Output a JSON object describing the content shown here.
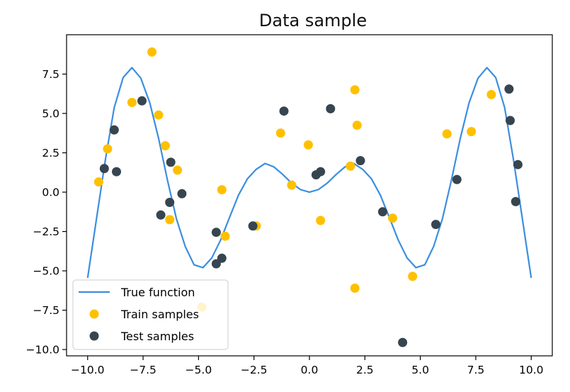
{
  "chart_data": {
    "type": "scatter",
    "title": "Data sample",
    "xlabel": "",
    "ylabel": "",
    "xlim": [
      -10.95,
      10.95
    ],
    "ylim": [
      -10.4,
      10.0
    ],
    "x_ticks": [
      -10.0,
      -7.5,
      -5.0,
      -2.5,
      0.0,
      2.5,
      5.0,
      7.5,
      10.0
    ],
    "x_tick_labels": [
      "−10.0",
      "−7.5",
      "−5.0",
      "−2.5",
      "0.0",
      "2.5",
      "5.0",
      "7.5",
      "10.0"
    ],
    "y_ticks": [
      7.5,
      5.0,
      2.5,
      0.0,
      -2.5,
      -5.0,
      -7.5,
      -10.0
    ],
    "y_tick_labels": [
      "7.5",
      "5.0",
      "2.5",
      "0.0",
      "−2.5",
      "−5.0",
      "−7.5",
      "−10.0"
    ],
    "grid": false,
    "legend_position": "lower-left",
    "colors": {
      "true_function": "#3b8ee0",
      "train": "#ffc000",
      "test": "#36454f",
      "axes": "#000000"
    },
    "legend": {
      "true_function": "True function",
      "train": "Train samples",
      "test": "Test samples"
    },
    "series": [
      {
        "name": "True function",
        "kind": "line",
        "x": [
          -10.0,
          -9.6,
          -9.2,
          -8.8,
          -8.4,
          -8.0,
          -7.6,
          -7.2,
          -6.8,
          -6.4,
          -6.0,
          -5.6,
          -5.2,
          -4.8,
          -4.4,
          -4.0,
          -3.6,
          -3.2,
          -2.8,
          -2.4,
          -2.0,
          -1.6,
          -1.2,
          -0.8,
          -0.4,
          0.0,
          0.4,
          0.8,
          1.2,
          1.6,
          2.0,
          2.4,
          2.8,
          3.2,
          3.6,
          4.0,
          4.4,
          4.8,
          5.2,
          5.6,
          6.0,
          6.4,
          6.8,
          7.2,
          7.6,
          8.0,
          8.4,
          8.8,
          9.2,
          9.6,
          10.0
        ],
        "y": [
          -5.44,
          -1.68,
          2.05,
          5.37,
          7.28,
          7.91,
          7.24,
          5.68,
          3.41,
          0.76,
          -1.68,
          -3.45,
          -4.62,
          -4.8,
          -4.17,
          -3.03,
          -1.6,
          -0.19,
          0.84,
          1.45,
          1.82,
          1.6,
          1.12,
          0.57,
          0.16,
          0.0,
          0.16,
          0.57,
          1.12,
          1.6,
          1.82,
          1.45,
          0.84,
          -0.19,
          -1.6,
          -3.03,
          -4.17,
          -4.8,
          -4.62,
          -3.45,
          -1.68,
          0.76,
          3.41,
          5.68,
          7.24,
          7.91,
          7.28,
          5.37,
          2.05,
          -1.68,
          -5.44
        ]
      },
      {
        "name": "Train samples",
        "kind": "scatter",
        "points": [
          [
            -9.5,
            0.65
          ],
          [
            -9.1,
            2.75
          ],
          [
            -8.0,
            5.7
          ],
          [
            -7.1,
            8.9
          ],
          [
            -6.8,
            4.9
          ],
          [
            -6.5,
            2.95
          ],
          [
            -6.3,
            -1.75
          ],
          [
            -5.95,
            1.4
          ],
          [
            -3.95,
            0.15
          ],
          [
            -3.8,
            -2.8
          ],
          [
            -2.4,
            -2.15
          ],
          [
            -1.3,
            3.75
          ],
          [
            -0.8,
            0.45
          ],
          [
            -0.05,
            3.0
          ],
          [
            0.5,
            -1.8
          ],
          [
            1.85,
            1.65
          ],
          [
            2.05,
            6.5
          ],
          [
            2.15,
            4.25
          ],
          [
            2.05,
            -6.1
          ],
          [
            3.75,
            -1.65
          ],
          [
            4.65,
            -5.35
          ],
          [
            6.2,
            3.7
          ],
          [
            7.3,
            3.85
          ],
          [
            8.2,
            6.2
          ],
          [
            -4.85,
            -7.3
          ]
        ]
      },
      {
        "name": "Test samples",
        "kind": "scatter",
        "points": [
          [
            -9.25,
            1.5
          ],
          [
            -8.8,
            3.95
          ],
          [
            -8.7,
            1.3
          ],
          [
            -7.55,
            5.8
          ],
          [
            -6.7,
            -1.45
          ],
          [
            -6.3,
            -0.65
          ],
          [
            -6.25,
            1.9
          ],
          [
            -5.75,
            -0.1
          ],
          [
            -4.2,
            -2.55
          ],
          [
            -4.2,
            -4.55
          ],
          [
            -3.95,
            -4.2
          ],
          [
            -2.55,
            -2.15
          ],
          [
            -1.15,
            5.15
          ],
          [
            0.95,
            5.3
          ],
          [
            0.3,
            1.1
          ],
          [
            0.5,
            1.3
          ],
          [
            2.3,
            2.0
          ],
          [
            3.3,
            -1.25
          ],
          [
            4.2,
            -9.55
          ],
          [
            5.7,
            -2.05
          ],
          [
            6.65,
            0.8
          ],
          [
            9.0,
            6.55
          ],
          [
            9.05,
            4.55
          ],
          [
            9.3,
            -0.6
          ],
          [
            9.4,
            1.75
          ]
        ]
      }
    ]
  }
}
